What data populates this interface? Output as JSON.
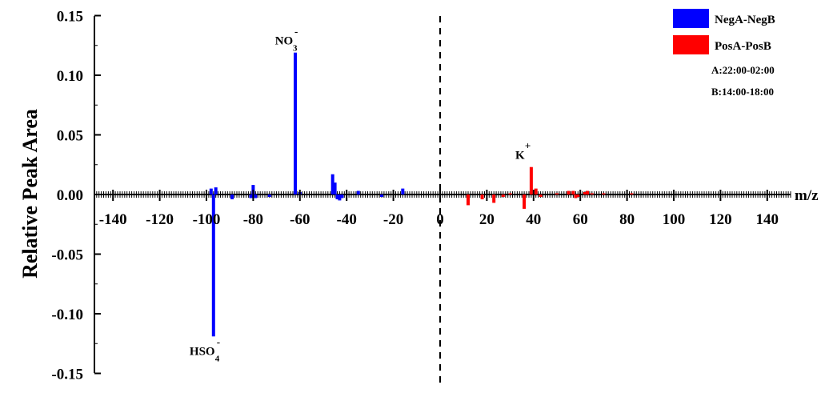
{
  "chart_data": {
    "type": "bar",
    "ylabel": "Relative Peak Area",
    "xlabel": "m/z",
    "xlim": [
      -148,
      150
    ],
    "ylim": [
      -0.15,
      0.15
    ],
    "x_ticks": [
      -140,
      -120,
      -100,
      -80,
      -60,
      -40,
      -20,
      0,
      20,
      40,
      60,
      80,
      100,
      120,
      140
    ],
    "x_tick_labels": [
      "-140",
      "-120",
      "-100",
      "-80",
      "-60",
      "-40",
      "-20",
      "0",
      "20",
      "40",
      "60",
      "80",
      "100",
      "120",
      "140"
    ],
    "y_ticks": [
      -0.15,
      -0.1,
      -0.05,
      0.0,
      0.05,
      0.1,
      0.15
    ],
    "y_tick_labels": [
      "-0.15",
      "-0.10",
      "-0.05",
      "0.00",
      "0.05",
      "0.10",
      "0.15"
    ],
    "legend": {
      "placement": "top-right",
      "entries": [
        {
          "name": "NegA-NegB",
          "color": "#0000ff"
        },
        {
          "name": "PosA-PosB",
          "color": "#ff0000"
        }
      ],
      "notes": [
        "A:22:00-02:00",
        "B:14:00-18:00"
      ]
    },
    "series": [
      {
        "name": "NegA-NegB",
        "color": "#0000ff",
        "points": [
          {
            "x": -98,
            "y": 0.005
          },
          {
            "x": -97,
            "y": -0.119
          },
          {
            "x": -96,
            "y": 0.006
          },
          {
            "x": -89,
            "y": -0.004
          },
          {
            "x": -81,
            "y": -0.003
          },
          {
            "x": -80,
            "y": 0.008
          },
          {
            "x": -79,
            "y": -0.003
          },
          {
            "x": -73,
            "y": -0.002
          },
          {
            "x": -62,
            "y": 0.119
          },
          {
            "x": -60,
            "y": 0.002
          },
          {
            "x": -46,
            "y": 0.017
          },
          {
            "x": -45,
            "y": 0.01
          },
          {
            "x": -44,
            "y": -0.004
          },
          {
            "x": -43,
            "y": -0.005
          },
          {
            "x": -42,
            "y": -0.003
          },
          {
            "x": -35,
            "y": 0.003
          },
          {
            "x": -25,
            "y": -0.002
          },
          {
            "x": -16,
            "y": 0.005
          }
        ]
      },
      {
        "name": "PosA-PosB",
        "color": "#ff0000",
        "points": [
          {
            "x": 12,
            "y": -0.009
          },
          {
            "x": 18,
            "y": -0.004
          },
          {
            "x": 23,
            "y": -0.007
          },
          {
            "x": 27,
            "y": -0.002
          },
          {
            "x": 30,
            "y": 0.001
          },
          {
            "x": 36,
            "y": -0.012
          },
          {
            "x": 39,
            "y": 0.023
          },
          {
            "x": 41,
            "y": 0.005
          },
          {
            "x": 43,
            "y": -0.002
          },
          {
            "x": 50,
            "y": 0.001
          },
          {
            "x": 55,
            "y": 0.003
          },
          {
            "x": 57,
            "y": 0.003
          },
          {
            "x": 58,
            "y": -0.003
          },
          {
            "x": 59,
            "y": -0.002
          },
          {
            "x": 62,
            "y": 0.002
          },
          {
            "x": 63,
            "y": 0.003
          },
          {
            "x": 65,
            "y": 0.001
          },
          {
            "x": 70,
            "y": 0.001
          },
          {
            "x": 82,
            "y": 0.001
          }
        ]
      }
    ],
    "annotations": [
      {
        "label": "NO",
        "sub": "3",
        "sup": "-",
        "x": -62,
        "y": 0.119,
        "side": "above"
      },
      {
        "label": "HSO",
        "sub": "4",
        "sup": "-",
        "x": -97,
        "y": -0.119,
        "side": "below"
      },
      {
        "label": "K",
        "sub": "",
        "sup": "+",
        "x": 39,
        "y": 0.023,
        "side": "above"
      }
    ],
    "reference_line": {
      "x": 0,
      "style": "dashed"
    }
  }
}
